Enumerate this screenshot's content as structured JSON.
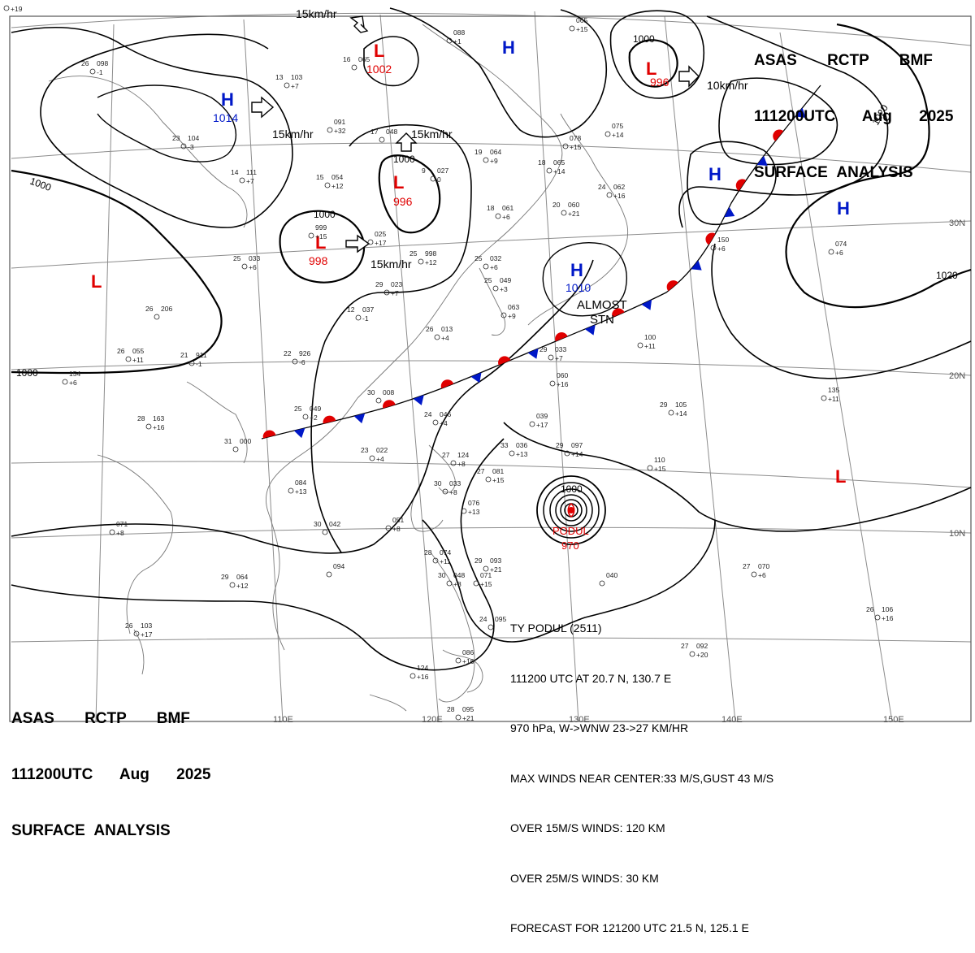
{
  "header": {
    "line1": "ASAS RCTP BMF",
    "line2": "111200UTC Aug 2025",
    "line3": "SURFACE ANALYSIS"
  },
  "colors": {
    "low": "#e00000",
    "high": "#0018c8",
    "warm_front": "#e00000",
    "cold_front": "#0018c8",
    "isobar": "#000000",
    "grid": "#888888"
  },
  "centers": [
    {
      "type": "H",
      "label": "H",
      "pressure": "1014",
      "motion": "15km/hr"
    },
    {
      "type": "L",
      "label": "L",
      "pressure": "1002",
      "motion": "15km/hr"
    },
    {
      "type": "L",
      "label": "L",
      "pressure": "996",
      "motion": "15km/hr"
    },
    {
      "type": "L",
      "label": "L",
      "pressure": "998",
      "motion": "15km/hr"
    },
    {
      "type": "L",
      "label": "L",
      "pressure": "996",
      "motion": "10km/hr"
    },
    {
      "type": "H",
      "label": "H",
      "pressure": "",
      "motion": ""
    },
    {
      "type": "H",
      "label": "H",
      "pressure": "",
      "motion": ""
    },
    {
      "type": "H",
      "label": "H",
      "pressure": "1010",
      "motion": ""
    },
    {
      "type": "L",
      "label": "L",
      "pressure": "",
      "motion": ""
    },
    {
      "type": "L",
      "label": "L",
      "pressure": "",
      "motion": ""
    }
  ],
  "almost_stn": [
    "ALMOST",
    "STN"
  ],
  "typhoon": {
    "name": "PODUL",
    "pressure": "970",
    "isobar_label": "1000",
    "bulletin": [
      "TY PODUL (2511)",
      "111200 UTC AT 20.7 N, 130.7 E",
      "970 hPa, W->WNW 23->27 KM/HR",
      "MAX WINDS NEAR CENTER:33 M/S,GUST 43 M/S",
      "OVER 15M/S WINDS: 120 KM",
      "OVER 25M/S WINDS: 30 KM",
      "FORECAST FOR 121200 UTC 21.5 N, 125.1 E"
    ]
  },
  "isobar_labels": [
    "1000",
    "1000",
    "1000",
    "1000",
    "1000",
    "1020",
    "1020"
  ],
  "grid_labels": {
    "lat": [
      "30N",
      "20N",
      "10N"
    ],
    "lon": [
      "110E",
      "120E",
      "130E",
      "140E",
      "150E"
    ]
  },
  "stations": [
    {
      "t": "26",
      "p": "098",
      "tend": "-1"
    },
    {
      "t": "13",
      "p": "103",
      "tend": "+7"
    },
    {
      "t": "16",
      "p": "065",
      "tend": ""
    },
    {
      "t": "",
      "p": "088",
      "tend": "+1"
    },
    {
      "t": "",
      "p": "065",
      "tend": "+15"
    },
    {
      "t": "23",
      "p": "104",
      "tend": "-3"
    },
    {
      "t": "",
      "p": "091",
      "tend": "+32"
    },
    {
      "t": "17",
      "p": "048",
      "tend": ""
    },
    {
      "t": "14",
      "p": "111",
      "tend": "+7"
    },
    {
      "t": "15",
      "p": "054",
      "tend": "+12"
    },
    {
      "t": "19",
      "p": "064",
      "tend": "+9"
    },
    {
      "t": "9",
      "p": "027",
      "tend": "0"
    },
    {
      "t": "18",
      "p": "065",
      "tend": "+14"
    },
    {
      "t": "",
      "p": "078",
      "tend": "+15"
    },
    {
      "t": "",
      "p": "075",
      "tend": "+14"
    },
    {
      "t": "24",
      "p": "062",
      "tend": "+16"
    },
    {
      "t": "18",
      "p": "061",
      "tend": "+6"
    },
    {
      "t": "20",
      "p": "060",
      "tend": "+21"
    },
    {
      "t": "",
      "p": "999",
      "tend": "+15"
    },
    {
      "t": "",
      "p": "025",
      "tend": "+17"
    },
    {
      "t": "25",
      "p": "033",
      "tend": "+6"
    },
    {
      "t": "25",
      "p": "998",
      "tend": "+12"
    },
    {
      "t": "25",
      "p": "032",
      "tend": "+6"
    },
    {
      "t": "29",
      "p": "023",
      "tend": "+7"
    },
    {
      "t": "25",
      "p": "049",
      "tend": "+3"
    },
    {
      "t": "",
      "p": "063",
      "tend": "+9"
    },
    {
      "t": "",
      "p": "150",
      "tend": "+6"
    },
    {
      "t": "",
      "p": "074",
      "tend": "+6"
    },
    {
      "t": "26",
      "p": "206",
      "tend": ""
    },
    {
      "t": "12",
      "p": "037",
      "tend": "-1"
    },
    {
      "t": "26",
      "p": "013",
      "tend": "+4"
    },
    {
      "t": "26",
      "p": "055",
      "tend": "+11"
    },
    {
      "t": "21",
      "p": "911",
      "tend": "-1"
    },
    {
      "t": "22",
      "p": "926",
      "tend": "-6"
    },
    {
      "t": "29",
      "p": "033",
      "tend": "+7"
    },
    {
      "t": "",
      "p": "060",
      "tend": "+16"
    },
    {
      "t": "",
      "p": "100",
      "tend": "+11"
    },
    {
      "t": "",
      "p": "135",
      "tend": "+11"
    },
    {
      "t": "",
      "p": "154",
      "tend": "+6"
    },
    {
      "t": "30",
      "p": "008",
      "tend": ""
    },
    {
      "t": "25",
      "p": "049",
      "tend": "+2"
    },
    {
      "t": "24",
      "p": "046",
      "tend": "+4"
    },
    {
      "t": "",
      "p": "039",
      "tend": "+17"
    },
    {
      "t": "29",
      "p": "105",
      "tend": "+14"
    },
    {
      "t": "28",
      "p": "163",
      "tend": "+16"
    },
    {
      "t": "31",
      "p": "000",
      "tend": ""
    },
    {
      "t": "23",
      "p": "022",
      "tend": "+4"
    },
    {
      "t": "33",
      "p": "036",
      "tend": "+13"
    },
    {
      "t": "29",
      "p": "097",
      "tend": "+14"
    },
    {
      "t": "",
      "p": "110",
      "tend": "+15"
    },
    {
      "t": "27",
      "p": "124",
      "tend": "+8"
    },
    {
      "t": "27",
      "p": "081",
      "tend": "+15"
    },
    {
      "t": "",
      "p": "084",
      "tend": "+13"
    },
    {
      "t": "30",
      "p": "033",
      "tend": "+8"
    },
    {
      "t": "",
      "p": "076",
      "tend": "+13"
    },
    {
      "t": "",
      "p": "071",
      "tend": "+8"
    },
    {
      "t": "30",
      "p": "042",
      "tend": ""
    },
    {
      "t": "",
      "p": "051",
      "tend": "+8"
    },
    {
      "t": "28",
      "p": "074",
      "tend": "+11"
    },
    {
      "t": "29",
      "p": "093",
      "tend": "+21"
    },
    {
      "t": "",
      "p": "094",
      "tend": ""
    },
    {
      "t": "29",
      "p": "064",
      "tend": "+12"
    },
    {
      "t": "30",
      "p": "048",
      "tend": "+8"
    },
    {
      "t": "",
      "p": "071",
      "tend": "+15"
    },
    {
      "t": "",
      "p": "040",
      "tend": ""
    },
    {
      "t": "27",
      "p": "070",
      "tend": "+6"
    },
    {
      "t": "26",
      "p": "106",
      "tend": "+16"
    },
    {
      "t": "26",
      "p": "103",
      "tend": "+17"
    },
    {
      "t": "24",
      "p": "095",
      "tend": ""
    },
    {
      "t": "",
      "p": "086",
      "tend": "+16"
    },
    {
      "t": "",
      "p": "124",
      "tend": "+16"
    },
    {
      "t": "28",
      "p": "095",
      "tend": "+21"
    },
    {
      "t": "27",
      "p": "092",
      "tend": "+20"
    },
    {
      "t": "",
      "p": "",
      "tend": "+19"
    }
  ]
}
